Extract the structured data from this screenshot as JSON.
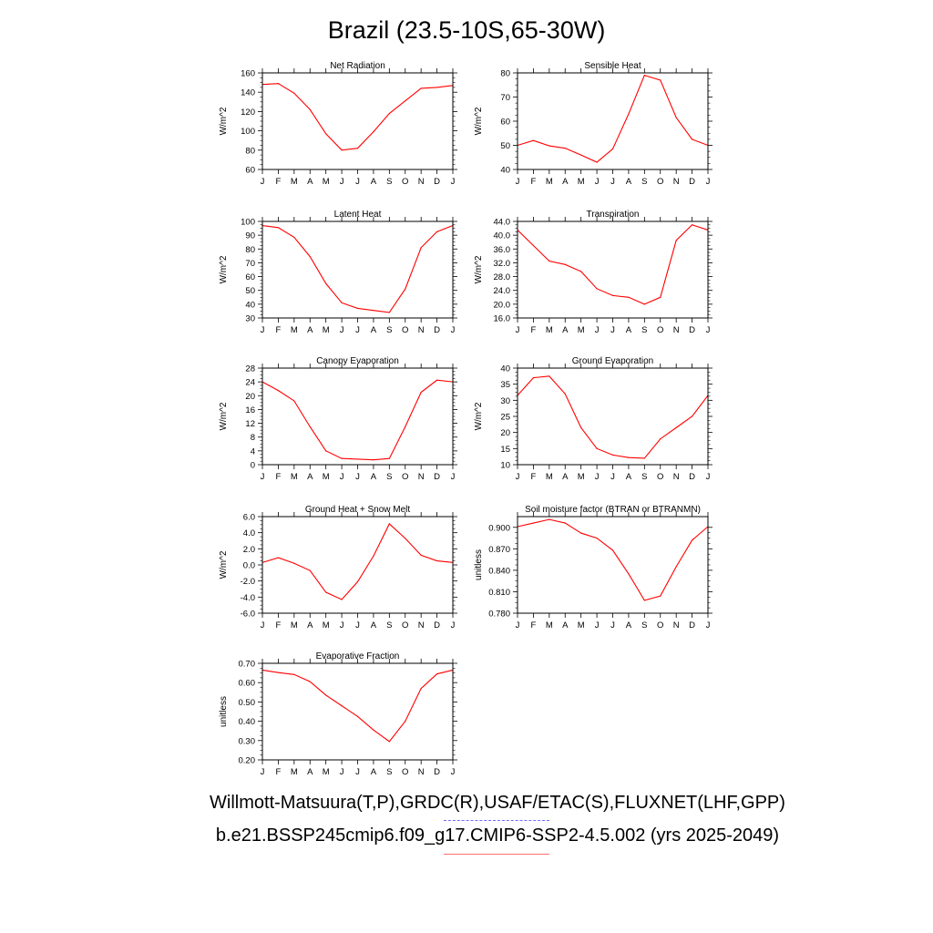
{
  "page": {
    "title": "Brazil (23.5-10S,65-30W)",
    "footer_obs": "Willmott-Matsuura(T,P),GRDC(R),USAF/ETAC(S),FLUXNET(LHF,GPP)",
    "footer_case": "b.e21.BSSP245cmip6.f09_g17.CMIP6-SSP2-4.5.002 (yrs 2025-2049)",
    "months": [
      "J",
      "F",
      "M",
      "A",
      "M",
      "J",
      "J",
      "A",
      "S",
      "O",
      "N",
      "D",
      "J"
    ],
    "line_color": "#ff0000",
    "obs_line_color": "#6c6cff"
  },
  "chart_data": [
    {
      "type": "line",
      "title": "Net Radiation",
      "ylabel": "W/m^2",
      "ylim": [
        60,
        160
      ],
      "yticks": [
        "60",
        "80",
        "100",
        "120",
        "140",
        "160"
      ],
      "values": [
        148,
        149,
        139,
        122,
        97,
        80,
        82,
        99,
        118,
        131,
        144,
        145,
        147
      ]
    },
    {
      "type": "line",
      "title": "Sensible Heat",
      "ylabel": "W/m^2",
      "ylim": [
        40,
        80
      ],
      "yticks": [
        "40",
        "50",
        "60",
        "70",
        "80"
      ],
      "values": [
        50,
        52,
        49.8,
        48.8,
        46,
        43,
        48.5,
        63,
        79,
        77,
        61.5,
        52.5,
        50
      ]
    },
    {
      "type": "line",
      "title": "Latent Heat",
      "ylabel": "W/m^2",
      "ylim": [
        30,
        100
      ],
      "yticks": [
        "30",
        "40",
        "50",
        "60",
        "70",
        "80",
        "90",
        "100"
      ],
      "values": [
        97,
        95.5,
        88.5,
        74.5,
        55,
        41,
        37,
        35.5,
        34,
        51,
        81,
        92.5,
        97
      ]
    },
    {
      "type": "line",
      "title": "Transpiration",
      "ylabel": "W/m^2",
      "ylim": [
        16,
        44
      ],
      "yticks": [
        "16.0",
        "20.0",
        "24.0",
        "28.0",
        "32.0",
        "36.0",
        "40.0",
        "44.0"
      ],
      "values": [
        41.5,
        37,
        32.5,
        31.5,
        29.5,
        24.5,
        22.5,
        22,
        20,
        22,
        38.5,
        43,
        41.5
      ]
    },
    {
      "type": "line",
      "title": "Canopy Evaporation",
      "ylabel": "W/m^2",
      "ylim": [
        0,
        28
      ],
      "yticks": [
        "0",
        "4",
        "8",
        "12",
        "16",
        "20",
        "24",
        "28"
      ],
      "values": [
        24,
        21.5,
        18.5,
        11,
        4,
        1.8,
        1.6,
        1.4,
        1.8,
        11,
        21,
        24.5,
        24
      ]
    },
    {
      "type": "line",
      "title": "Ground Evaporation",
      "ylabel": "W/m^2",
      "ylim": [
        10,
        40
      ],
      "yticks": [
        "10",
        "15",
        "20",
        "25",
        "30",
        "35",
        "40"
      ],
      "values": [
        31.5,
        37,
        37.5,
        32,
        21.5,
        15,
        13,
        12.2,
        12,
        18,
        21.5,
        25,
        31.5
      ]
    },
    {
      "type": "line",
      "title": "Ground Heat + Snow Melt",
      "ylabel": "W/m^2",
      "ylim": [
        -6,
        6
      ],
      "yticks": [
        "-6.0",
        "-4.0",
        "-2.0",
        "0.0",
        "2.0",
        "4.0",
        "6.0"
      ],
      "values": [
        0.3,
        0.9,
        0.2,
        -0.7,
        -3.4,
        -4.3,
        -2.1,
        1.1,
        5.1,
        3.3,
        1.2,
        0.5,
        0.3
      ]
    },
    {
      "type": "line",
      "title": "Soil moisture factor (BTRAN or BTRANMN)",
      "ylabel": "unitless",
      "ylim": [
        0.78,
        0.915
      ],
      "yticks": [
        "0.780",
        "0.810",
        "0.840",
        "0.870",
        "0.900"
      ],
      "values": [
        0.901,
        0.906,
        0.911,
        0.906,
        0.892,
        0.885,
        0.868,
        0.835,
        0.798,
        0.804,
        0.845,
        0.882,
        0.901
      ]
    },
    {
      "type": "line",
      "title": "Evaporative Fraction",
      "ylabel": "unitless",
      "ylim": [
        0.2,
        0.7
      ],
      "yticks": [
        "0.20",
        "0.30",
        "0.40",
        "0.50",
        "0.60",
        "0.70"
      ],
      "values": [
        0.665,
        0.652,
        0.642,
        0.605,
        0.535,
        0.48,
        0.425,
        0.355,
        0.295,
        0.4,
        0.57,
        0.645,
        0.665
      ]
    }
  ]
}
